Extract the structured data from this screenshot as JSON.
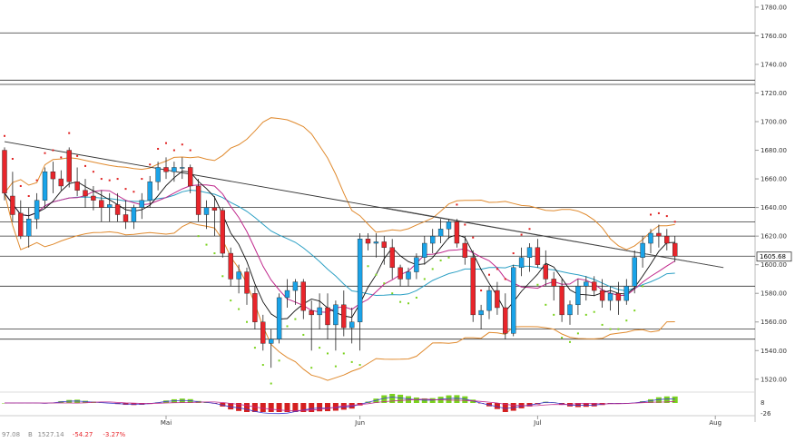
{
  "chart_data": {
    "type": "candlestick",
    "instrument_price": {
      "current": "1605.68",
      "status_text": [
        "97.08",
        "B",
        "1527.14",
        "-54.27",
        "-3.27%"
      ]
    },
    "y_axis": {
      "ticks": [
        1780,
        1760,
        1740,
        1720,
        1700,
        1680,
        1660,
        1640,
        1620,
        1600,
        1580,
        1560,
        1540,
        1520
      ],
      "tick_labels": [
        "1780.00",
        "1760.00",
        "1740.00",
        "1720.00",
        "1700.00",
        "1680.00",
        "1660.00",
        "1640.00",
        "1620.00",
        "1600.00",
        "1580.00",
        "1560.00",
        "1540.00",
        "1520.00"
      ],
      "ylim": [
        1511,
        1785
      ]
    },
    "x_axis": {
      "labels": [
        {
          "text": "Mai",
          "index": 20
        },
        {
          "text": "Jun",
          "index": 44
        },
        {
          "text": "Jul",
          "index": 66
        },
        {
          "text": "Aug",
          "index": 88
        }
      ],
      "n": 90
    },
    "indicator_axis": {
      "ticks": [
        8,
        -26
      ],
      "tick_labels": [
        "8",
        "-26"
      ]
    },
    "horizontal_levels": [
      1762,
      1729,
      1726,
      1640,
      1630,
      1620,
      1606,
      1585,
      1555,
      1548
    ],
    "trendline": {
      "from": [
        0,
        1686
      ],
      "to": [
        89,
        1598
      ]
    },
    "trendline2": {
      "from": [
        47,
        1640
      ],
      "to": [
        89,
        1598
      ]
    },
    "candles": [
      [
        1680,
        1682,
        1645,
        1650
      ],
      [
        1648,
        1665,
        1630,
        1635
      ],
      [
        1636,
        1645,
        1618,
        1620
      ],
      [
        1620,
        1640,
        1612,
        1632
      ],
      [
        1632,
        1650,
        1625,
        1645
      ],
      [
        1645,
        1668,
        1640,
        1665
      ],
      [
        1665,
        1672,
        1650,
        1660
      ],
      [
        1660,
        1666,
        1652,
        1655
      ],
      [
        1680,
        1682,
        1654,
        1658
      ],
      [
        1658,
        1668,
        1648,
        1652
      ],
      [
        1652,
        1660,
        1640,
        1648
      ],
      [
        1648,
        1655,
        1638,
        1645
      ],
      [
        1645,
        1652,
        1630,
        1640
      ],
      [
        1640,
        1650,
        1630,
        1642
      ],
      [
        1642,
        1650,
        1630,
        1635
      ],
      [
        1635,
        1645,
        1625,
        1630
      ],
      [
        1630,
        1642,
        1625,
        1640
      ],
      [
        1640,
        1650,
        1632,
        1645
      ],
      [
        1645,
        1662,
        1640,
        1658
      ],
      [
        1658,
        1672,
        1652,
        1668
      ],
      [
        1668,
        1675,
        1660,
        1665
      ],
      [
        1665,
        1672,
        1658,
        1668
      ],
      [
        1668,
        1675,
        1660,
        1668
      ],
      [
        1668,
        1670,
        1650,
        1655
      ],
      [
        1655,
        1660,
        1630,
        1635
      ],
      [
        1635,
        1645,
        1625,
        1640
      ],
      [
        1640,
        1648,
        1620,
        1638
      ],
      [
        1638,
        1640,
        1605,
        1608
      ],
      [
        1608,
        1612,
        1585,
        1590
      ],
      [
        1590,
        1600,
        1580,
        1595
      ],
      [
        1595,
        1598,
        1572,
        1580
      ],
      [
        1580,
        1585,
        1555,
        1560
      ],
      [
        1560,
        1565,
        1540,
        1545
      ],
      [
        1545,
        1555,
        1528,
        1548
      ],
      [
        1548,
        1580,
        1545,
        1577
      ],
      [
        1577,
        1590,
        1570,
        1582
      ],
      [
        1582,
        1590,
        1572,
        1588
      ],
      [
        1588,
        1590,
        1562,
        1568
      ],
      [
        1568,
        1575,
        1540,
        1565
      ],
      [
        1565,
        1580,
        1555,
        1570
      ],
      [
        1570,
        1580,
        1548,
        1558
      ],
      [
        1558,
        1575,
        1540,
        1572
      ],
      [
        1572,
        1582,
        1550,
        1556
      ],
      [
        1556,
        1570,
        1545,
        1560
      ],
      [
        1560,
        1622,
        1540,
        1618
      ],
      [
        1618,
        1622,
        1610,
        1615
      ],
      [
        1615,
        1622,
        1605,
        1616
      ],
      [
        1616,
        1620,
        1600,
        1612
      ],
      [
        1612,
        1618,
        1590,
        1598
      ],
      [
        1598,
        1600,
        1585,
        1590
      ],
      [
        1590,
        1598,
        1585,
        1595
      ],
      [
        1595,
        1608,
        1590,
        1605
      ],
      [
        1605,
        1620,
        1600,
        1615
      ],
      [
        1615,
        1625,
        1608,
        1620
      ],
      [
        1620,
        1632,
        1615,
        1625
      ],
      [
        1625,
        1632,
        1618,
        1630
      ],
      [
        1630,
        1632,
        1612,
        1615
      ],
      [
        1615,
        1620,
        1600,
        1605
      ],
      [
        1605,
        1610,
        1560,
        1565
      ],
      [
        1565,
        1572,
        1555,
        1568
      ],
      [
        1568,
        1585,
        1562,
        1582
      ],
      [
        1582,
        1588,
        1565,
        1570
      ],
      [
        1570,
        1580,
        1548,
        1552
      ],
      [
        1552,
        1600,
        1550,
        1598
      ],
      [
        1598,
        1612,
        1592,
        1605
      ],
      [
        1605,
        1615,
        1595,
        1612
      ],
      [
        1612,
        1618,
        1598,
        1600
      ],
      [
        1600,
        1610,
        1585,
        1590
      ],
      [
        1590,
        1595,
        1575,
        1585
      ],
      [
        1585,
        1590,
        1560,
        1565
      ],
      [
        1565,
        1575,
        1558,
        1572
      ],
      [
        1572,
        1590,
        1565,
        1585
      ],
      [
        1585,
        1592,
        1575,
        1588
      ],
      [
        1588,
        1592,
        1578,
        1582
      ],
      [
        1582,
        1590,
        1570,
        1575
      ],
      [
        1575,
        1585,
        1568,
        1580
      ],
      [
        1580,
        1588,
        1565,
        1575
      ],
      [
        1575,
        1590,
        1572,
        1585
      ],
      [
        1585,
        1610,
        1580,
        1605
      ],
      [
        1605,
        1620,
        1598,
        1615
      ],
      [
        1615,
        1625,
        1608,
        1622
      ],
      [
        1622,
        1628,
        1612,
        1620
      ],
      [
        1620,
        1625,
        1610,
        1615
      ],
      [
        1615,
        1620,
        1602,
        1606
      ]
    ]
  }
}
